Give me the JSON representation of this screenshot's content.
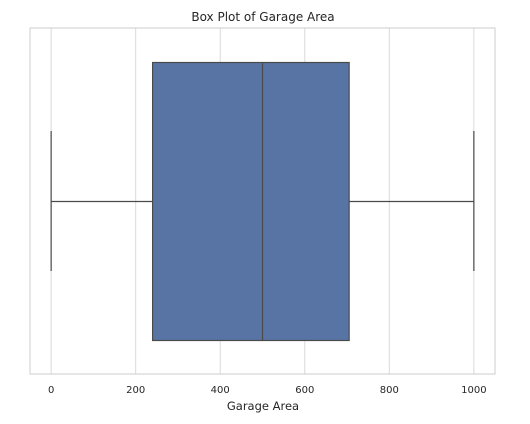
{
  "chart_data": {
    "type": "box",
    "title": "Box Plot of Garage Area",
    "xlabel": "Garage Area",
    "ylabel": "",
    "orientation": "horizontal",
    "xlim": [
      -50,
      1050
    ],
    "xticks": [
      0,
      200,
      400,
      600,
      800,
      1000
    ],
    "xtick_labels": [
      "0",
      "200",
      "400",
      "600",
      "800",
      "1000"
    ],
    "grid": true,
    "box": {
      "whisker_low": 0,
      "q1": 240,
      "median": 500,
      "q3": 705,
      "whisker_high": 1000
    },
    "colors": {
      "box_fill": "#5874a5",
      "line": "#4a4a4a",
      "grid": "#d9d9d9",
      "frame": "#cccccc"
    }
  }
}
